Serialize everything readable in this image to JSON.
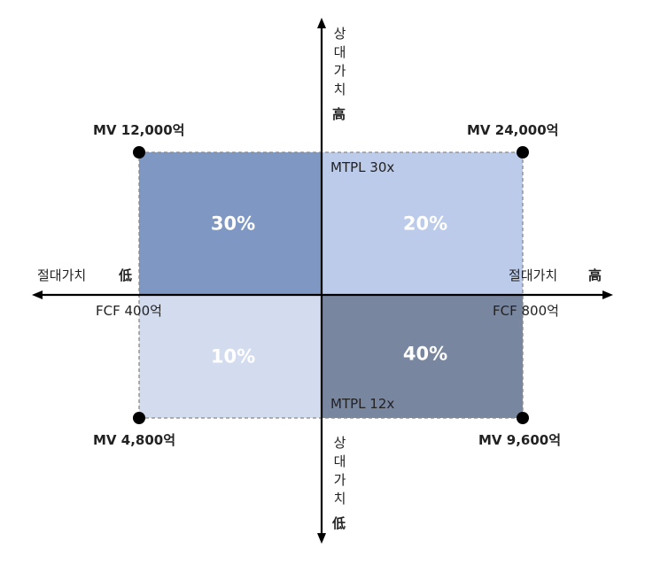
{
  "vertical_axis": {
    "top": {
      "label": "상대가치",
      "marker": "高"
    },
    "bottom": {
      "label": "상대가치",
      "marker": "低"
    }
  },
  "horizontal_axis": {
    "left": {
      "label": "절대가치",
      "marker": "低"
    },
    "right": {
      "label": "절대가치",
      "marker": "高"
    }
  },
  "corners": {
    "top_left": "MV 12,000억",
    "top_right": "MV 24,000억",
    "bottom_left": "MV 4,800억",
    "bottom_right": "MV 9,600억"
  },
  "multiples": {
    "high": "MTPL 30x",
    "low": "MTPL 12x"
  },
  "fcf": {
    "low": "FCF 400억",
    "high": "FCF 800억"
  },
  "quadrants": {
    "top_left": "30%",
    "top_right": "20%",
    "bottom_left": "10%",
    "bottom_right": "40%"
  }
}
